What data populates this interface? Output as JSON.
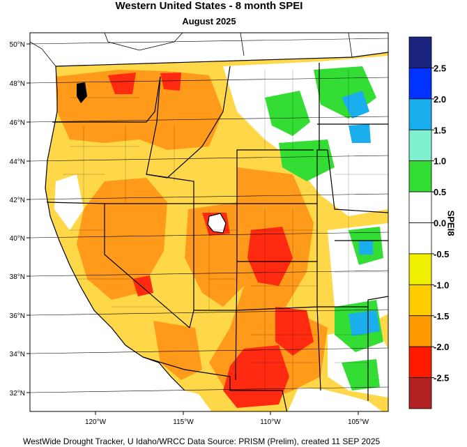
{
  "title": "Western United States - 8 month SPEI",
  "subtitle": "August 2025",
  "footer": "WestWide Drought Tracker, U Idaho/WRCC Data Source: PRISM (Prelim), created 11 SEP 2025",
  "colorbar": {
    "title": "SPEI8",
    "labels": [
      "2.5",
      "2.0",
      "1.5",
      "1.0",
      "0.5",
      "0.0",
      "-0.5",
      "-1.0",
      "-1.5",
      "-2.0",
      "-2.5"
    ],
    "colors": [
      "#1a237e",
      "#0033ff",
      "#1aaeee",
      "#80f0d0",
      "#33dd33",
      "#ffffff",
      "#ffffff",
      "#eef000",
      "#ffcc00",
      "#ff9900",
      "#ff1a00",
      "#b22222"
    ]
  },
  "map": {
    "lat_labels": [
      "50°N",
      "48°N",
      "46°N",
      "44°N",
      "42°N",
      "40°N",
      "38°N",
      "36°N",
      "34°N",
      "32°N"
    ],
    "lon_labels": [
      "120°W",
      "115°W",
      "110°W",
      "105°W"
    ],
    "colors": {
      "ocean": "#ffffff",
      "land_base": "#ffd84a",
      "dry_severe": "#ff9a1a",
      "dry_extreme": "#ff2a10",
      "wet_moderate": "#33dd33",
      "wet_very": "#1aaeee",
      "near_normal": "#ffffff"
    }
  }
}
